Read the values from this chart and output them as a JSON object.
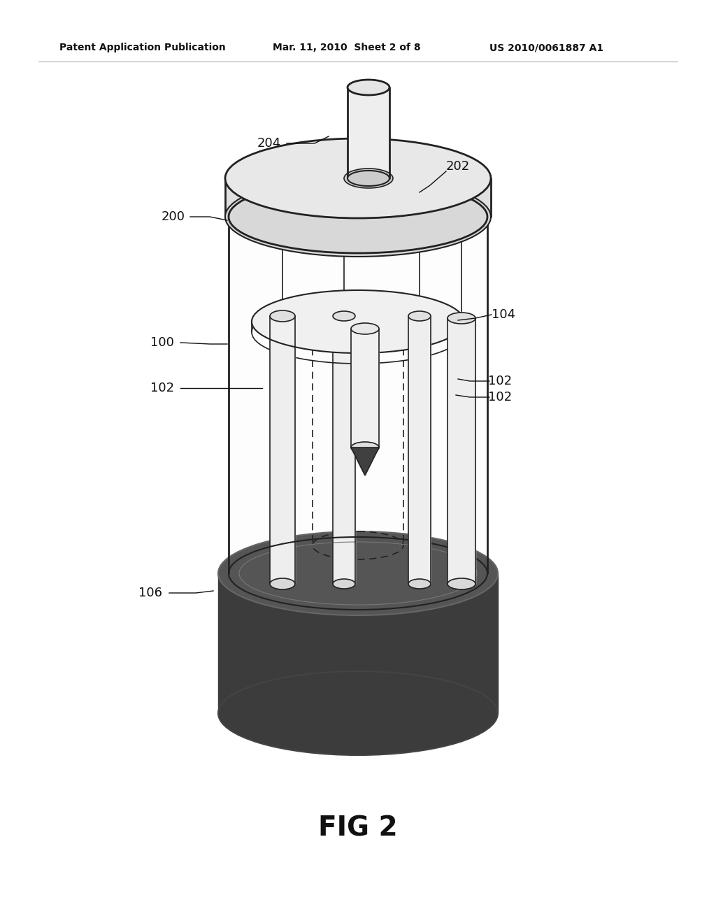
{
  "bg_color": "#ffffff",
  "line_color": "#222222",
  "header_text_left": "Patent Application Publication",
  "header_text_mid": "Mar. 11, 2010  Sheet 2 of 8",
  "header_text_right": "US 2010/0061887 A1",
  "fig_label": "FIG 2",
  "ann_color": "#111111",
  "dark_base_color": "#3c3c3c",
  "dark_base_edge": "#555555",
  "mid_gray": "#888888",
  "light_fill": "#f5f5f5",
  "white_fill": "#ffffff"
}
